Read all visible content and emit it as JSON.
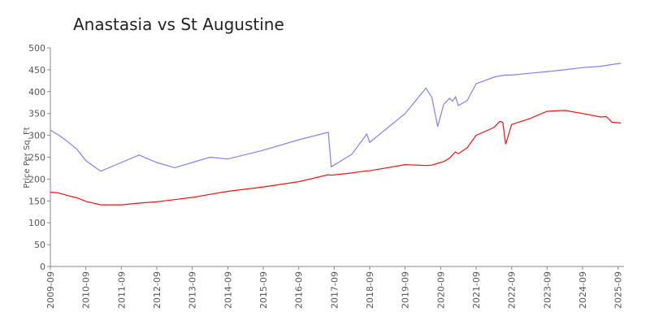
{
  "chart_data": {
    "type": "line",
    "title": "Anastasia vs St Augustine",
    "y_label": "Price Per Sq. Ft",
    "x": [
      "2009-09",
      "2009-12",
      "2010-03",
      "2010-06",
      "2010-09",
      "2011-02",
      "2011-09",
      "2012-03",
      "2012-09",
      "2013-03",
      "2013-09",
      "2014-03",
      "2014-09",
      "2015-09",
      "2016-09",
      "2017-07",
      "2017-08",
      "2018-03",
      "2018-08",
      "2018-09",
      "2019-09",
      "2020-04",
      "2020-06",
      "2020-08",
      "2020-10",
      "2020-12",
      "2021-01",
      "2021-02",
      "2021-03",
      "2021-06",
      "2021-09",
      "2022-03",
      "2022-05",
      "2022-06",
      "2022-07",
      "2022-09",
      "2023-03",
      "2023-09",
      "2024-03",
      "2024-09",
      "2025-03",
      "2025-05",
      "2025-07",
      "2025-10"
    ],
    "series": [
      {
        "color": "#8080f0",
        "values": [
          312,
          300,
          285,
          268,
          242,
          218,
          238,
          255,
          238,
          226,
          238,
          250,
          246,
          266,
          290,
          307,
          228,
          257,
          303,
          284,
          350,
          408,
          387,
          320,
          370,
          385,
          378,
          388,
          368,
          380,
          418,
          433,
          436,
          437,
          438,
          438,
          442,
          446,
          450,
          455,
          458,
          460,
          462,
          465
        ]
      },
      {
        "color": "#ee1111",
        "values": [
          170,
          168,
          162,
          157,
          149,
          141,
          141,
          145,
          148,
          153,
          158,
          165,
          172,
          182,
          194,
          210,
          209,
          214,
          219,
          219,
          233,
          231,
          232,
          236,
          240,
          248,
          255,
          262,
          258,
          272,
          300,
          318,
          332,
          330,
          280,
          325,
          338,
          355,
          357,
          350,
          342,
          343,
          330,
          328
        ]
      }
    ],
    "xlim": [
      "2009-09",
      "2025-11"
    ],
    "xticks": [
      "2009-09",
      "2010-09",
      "2011-09",
      "2012-09",
      "2013-09",
      "2014-09",
      "2015-09",
      "2016-09",
      "2017-09",
      "2018-09",
      "2019-09",
      "2020-09",
      "2021-09",
      "2022-09",
      "2023-09",
      "2024-09",
      "2025-09"
    ],
    "ylim": [
      0,
      500
    ],
    "yticks": [
      0,
      50,
      100,
      150,
      200,
      250,
      300,
      350,
      400,
      450,
      500
    ],
    "grid": false
  }
}
